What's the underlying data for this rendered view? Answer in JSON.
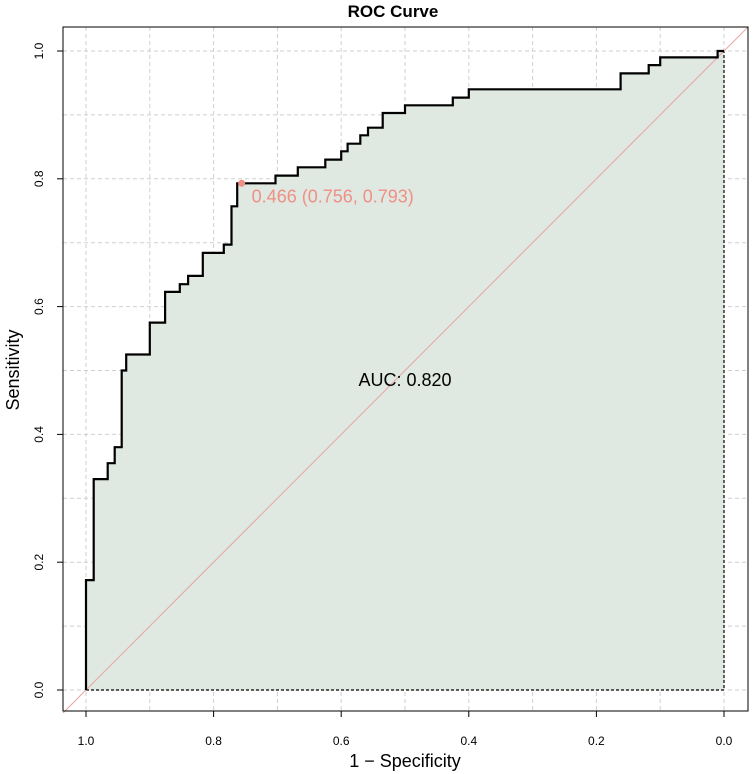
{
  "chart_data": {
    "type": "line",
    "title": "ROC Curve",
    "xlabel": "1 − Specificity",
    "ylabel": "Sensitivity",
    "x_axis_reversed": true,
    "xlim": [
      1.0,
      0.0
    ],
    "ylim": [
      0.0,
      1.0
    ],
    "x_ticks": [
      1.0,
      0.8,
      0.6,
      0.4,
      0.2,
      0.0
    ],
    "x_tick_labels": [
      "1.0",
      "0.8",
      "0.6",
      "0.4",
      "0.2",
      "0.0"
    ],
    "y_ticks": [
      0.0,
      0.2,
      0.4,
      0.6,
      0.8,
      1.0
    ],
    "y_tick_labels": [
      "0.0",
      "0.2",
      "0.4",
      "0.6",
      "0.8",
      "1.0"
    ],
    "grid": true,
    "series": [
      {
        "name": "ROC curve",
        "x_field": "specificity",
        "y_field": "sensitivity",
        "points": [
          [
            1.0,
            0.0
          ],
          [
            1.0,
            0.172
          ],
          [
            0.988,
            0.172
          ],
          [
            0.988,
            0.33
          ],
          [
            0.966,
            0.33
          ],
          [
            0.966,
            0.355
          ],
          [
            0.955,
            0.355
          ],
          [
            0.955,
            0.38
          ],
          [
            0.944,
            0.38
          ],
          [
            0.944,
            0.5
          ],
          [
            0.937,
            0.5
          ],
          [
            0.937,
            0.525
          ],
          [
            0.9,
            0.525
          ],
          [
            0.9,
            0.575
          ],
          [
            0.876,
            0.575
          ],
          [
            0.876,
            0.623
          ],
          [
            0.853,
            0.623
          ],
          [
            0.853,
            0.635
          ],
          [
            0.84,
            0.635
          ],
          [
            0.84,
            0.648
          ],
          [
            0.817,
            0.648
          ],
          [
            0.817,
            0.684
          ],
          [
            0.784,
            0.684
          ],
          [
            0.784,
            0.697
          ],
          [
            0.772,
            0.697
          ],
          [
            0.772,
            0.757
          ],
          [
            0.763,
            0.757
          ],
          [
            0.763,
            0.793
          ],
          [
            0.756,
            0.793
          ],
          [
            0.703,
            0.793
          ],
          [
            0.703,
            0.805
          ],
          [
            0.668,
            0.805
          ],
          [
            0.668,
            0.818
          ],
          [
            0.625,
            0.818
          ],
          [
            0.625,
            0.83
          ],
          [
            0.6,
            0.83
          ],
          [
            0.6,
            0.843
          ],
          [
            0.59,
            0.843
          ],
          [
            0.59,
            0.855
          ],
          [
            0.57,
            0.855
          ],
          [
            0.57,
            0.868
          ],
          [
            0.558,
            0.868
          ],
          [
            0.558,
            0.88
          ],
          [
            0.535,
            0.88
          ],
          [
            0.535,
            0.903
          ],
          [
            0.5,
            0.903
          ],
          [
            0.5,
            0.915
          ],
          [
            0.425,
            0.915
          ],
          [
            0.425,
            0.927
          ],
          [
            0.4,
            0.927
          ],
          [
            0.4,
            0.94
          ],
          [
            0.162,
            0.94
          ],
          [
            0.162,
            0.965
          ],
          [
            0.118,
            0.965
          ],
          [
            0.118,
            0.978
          ],
          [
            0.1,
            0.978
          ],
          [
            0.1,
            0.99
          ],
          [
            0.01,
            0.99
          ],
          [
            0.01,
            1.0
          ],
          [
            0.0,
            1.0
          ]
        ],
        "color": "#000000"
      },
      {
        "name": "chance line",
        "points": [
          [
            1.0,
            0.0
          ],
          [
            0.0,
            1.0
          ]
        ],
        "color": "#e8a4a4"
      }
    ],
    "fill_color": "#dfe8e1",
    "best_threshold": {
      "label": "0.466 (0.756, 0.793)",
      "threshold": 0.466,
      "specificity": 0.756,
      "sensitivity": 0.793,
      "color": "#f08f85"
    },
    "auc_label": "AUC: 0.820",
    "auc_anchor": [
      0.5,
      0.485
    ]
  }
}
